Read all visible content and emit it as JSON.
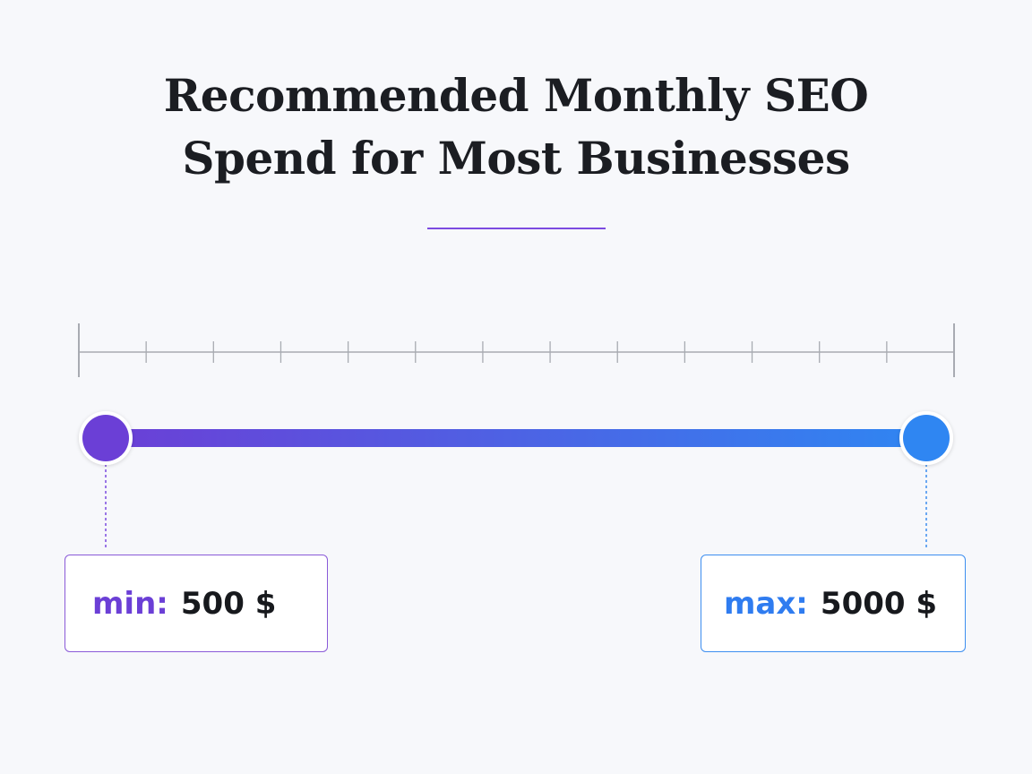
{
  "title": {
    "line1": "Recommended Monthly SEO",
    "line2": "Spend for Most Businesses"
  },
  "range": {
    "min_label": "min:",
    "min_value": "500 $",
    "max_label": "max:",
    "max_value": "5000 $"
  },
  "colors": {
    "accent_start": "#6b3fd6",
    "accent_end": "#2f86f2",
    "axis": "#a8abb2",
    "text": "#1b1d22",
    "background": "#f7f8fb"
  },
  "scale": {
    "tick_count": 14
  }
}
